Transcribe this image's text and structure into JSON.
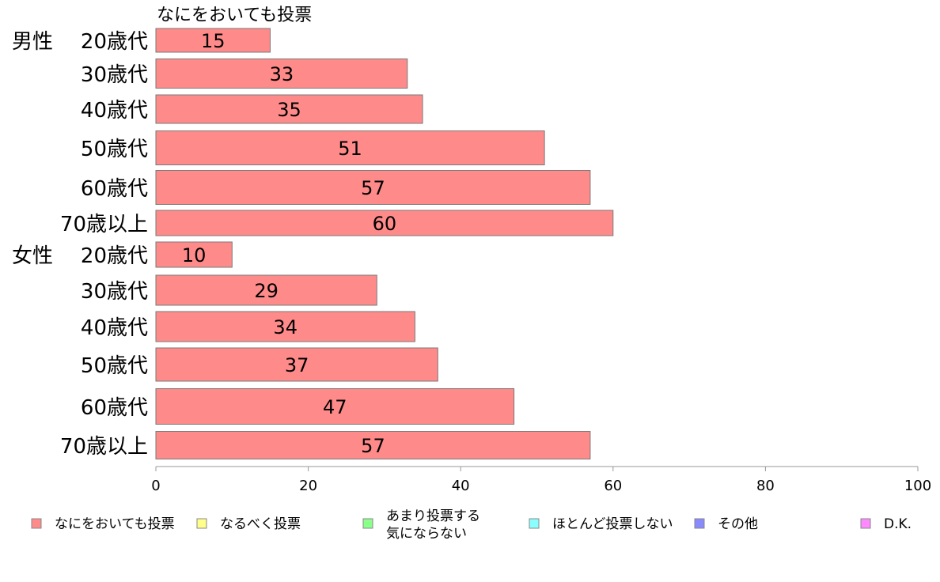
{
  "chart_data": {
    "type": "bar",
    "orientation": "horizontal",
    "series_title": "なにをおいても投票",
    "groups": [
      {
        "label": "男性",
        "categories": [
          "20歳代",
          "30歳代",
          "40歳代",
          "50歳代",
          "60歳代",
          "70歳以上"
        ],
        "values": [
          15,
          33,
          35,
          51,
          57,
          60
        ]
      },
      {
        "label": "女性",
        "categories": [
          "20歳代",
          "30歳代",
          "40歳代",
          "50歳代",
          "60歳代",
          "70歳以上"
        ],
        "values": [
          10,
          29,
          34,
          37,
          47,
          57
        ]
      }
    ],
    "xlim": [
      0,
      100
    ],
    "xticks": [
      0,
      20,
      40,
      60,
      80,
      100
    ],
    "bar_color": "#ff8a8a",
    "bar_stroke": "#7a7a7a",
    "legend": [
      {
        "label": "なにをおいても投票",
        "color": "#ff8a8a"
      },
      {
        "label": "なるべく投票",
        "color": "#ffff8a"
      },
      {
        "label": "あまり投票する\n気にならない",
        "color": "#8aff8a"
      },
      {
        "label": "ほとんど投票しない",
        "color": "#8affff"
      },
      {
        "label": "その他",
        "color": "#8a8aff"
      },
      {
        "label": "D.K.",
        "color": "#ff8aff"
      }
    ],
    "legend_position": "bottom",
    "grid": false
  }
}
